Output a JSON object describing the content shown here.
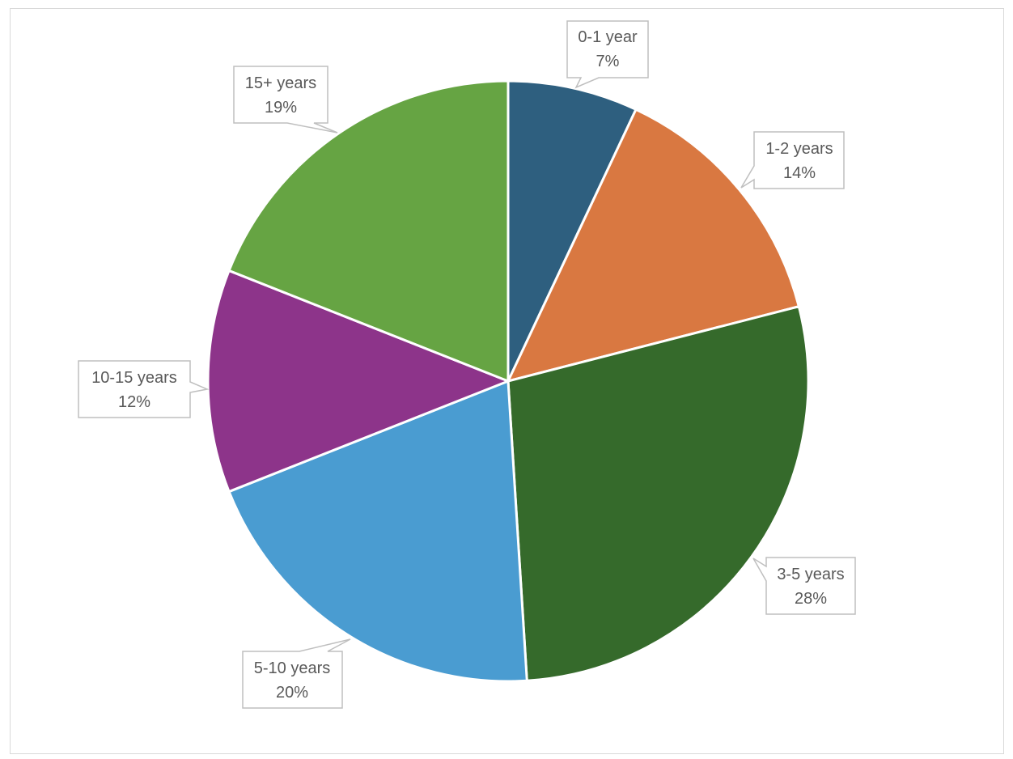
{
  "chart_data": {
    "type": "pie",
    "title": "",
    "categories": [
      "0-1 year",
      "1-2 years",
      "3-5 years",
      "5-10 years",
      "10-15 years",
      "15+ years"
    ],
    "values": [
      7,
      14,
      28,
      20,
      12,
      19
    ],
    "unit": "%",
    "colors": [
      "#2e5f7f",
      "#d97841",
      "#356a2b",
      "#4a9cd1",
      "#8d348a",
      "#66a443"
    ],
    "start_angle_deg": 0,
    "direction": "clockwise",
    "legend": "none",
    "data_labels": [
      {
        "category": "0-1 year",
        "label": "0-1 year",
        "value": "7%"
      },
      {
        "category": "1-2 years",
        "label": "1-2 years",
        "value": "14%"
      },
      {
        "category": "3-5 years",
        "label": "3-5 years",
        "value": "28%"
      },
      {
        "category": "5-10 years",
        "label": "5-10 years",
        "value": "20%"
      },
      {
        "category": "10-15 years",
        "label": "10-15 years",
        "value": "12%"
      },
      {
        "category": "15+ years",
        "label": "15+ years",
        "value": "19%"
      }
    ]
  }
}
